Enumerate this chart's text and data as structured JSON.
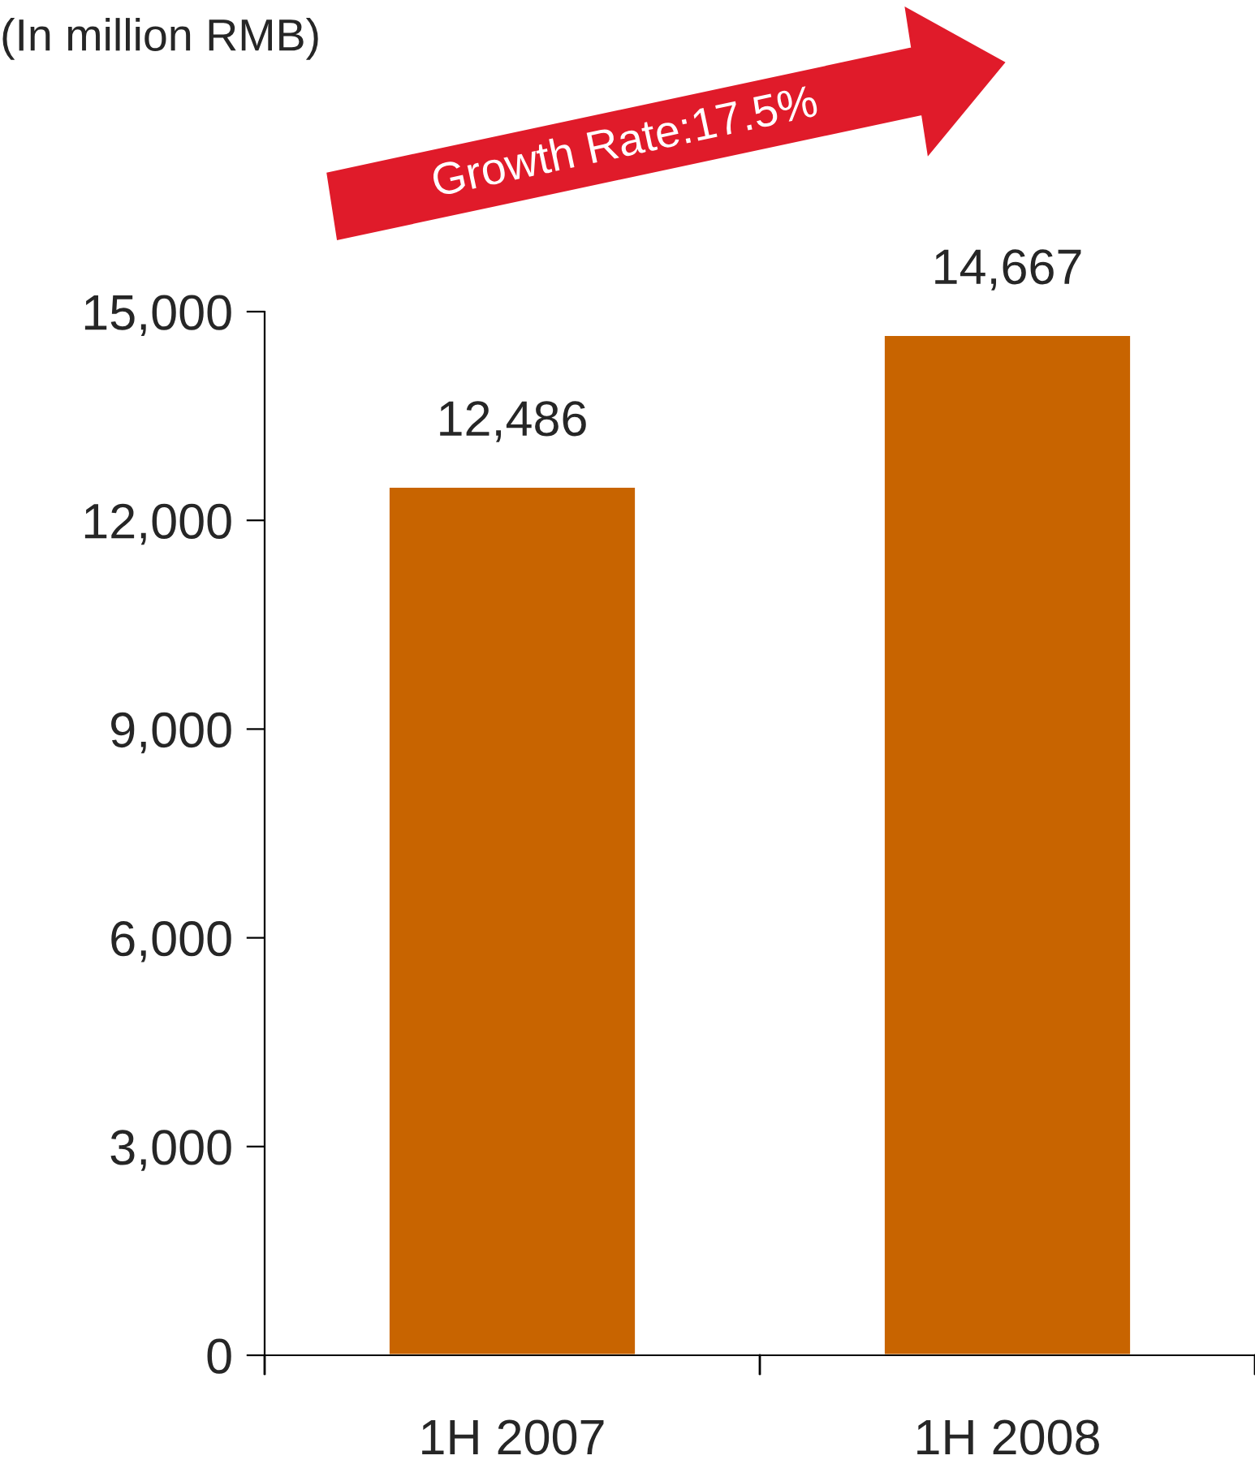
{
  "chart_data": {
    "type": "bar",
    "categories": [
      "1H 2007",
      "1H 2008"
    ],
    "values": [
      12486,
      14667
    ],
    "color": "#c86400",
    "ylim": [
      0,
      15000
    ],
    "yticks": [
      {
        "value": 0,
        "label": "0"
      },
      {
        "value": 3000,
        "label": "3,000"
      },
      {
        "value": 6000,
        "label": "6,000"
      },
      {
        "value": 9000,
        "label": "9,000"
      },
      {
        "value": 12000,
        "label": "12,000"
      },
      {
        "value": 15000,
        "label": "15,000"
      }
    ],
    "value_labels": [
      "12,486",
      "14,667"
    ],
    "annotations": [
      "(In million RMB)",
      "Growth Rate:17.5%"
    ],
    "grid": false,
    "legend": false
  }
}
